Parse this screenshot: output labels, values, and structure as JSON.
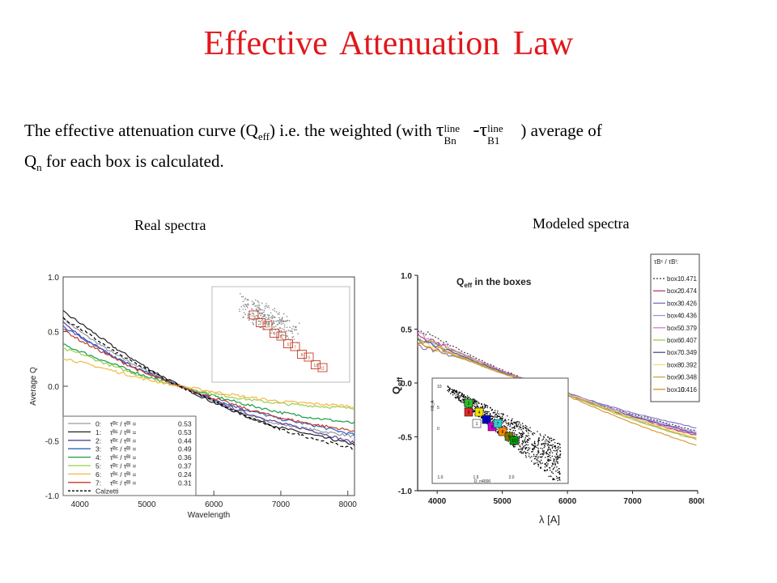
{
  "slide": {
    "title": "Effective Attenuation Law",
    "text_pre": "The effective attenuation curve (Q",
    "text_sub1": "eff",
    "text_mid": ") i.e. the weighted (with ",
    "tau_sup1": "line",
    "tau_sub1": "Bn",
    "tau_sup2": "line",
    "tau_sub2": "B1",
    "text_post": " ) average of",
    "text_line2_pre": "Q",
    "text_sub2": "n",
    "text_line2_post": " for each box is calculated.",
    "caption_left": "Real spectra",
    "caption_right": "Modeled spectra"
  },
  "chart_data": [
    {
      "type": "line",
      "title": "",
      "xlabel": "Wavelength",
      "ylabel": "Average Q",
      "xlim": [
        3750,
        8100
      ],
      "ylim": [
        -1.0,
        1.0
      ],
      "xticks": [
        4000,
        5000,
        6000,
        7000,
        8000
      ],
      "yticks": [
        -1.0,
        -0.5,
        0.0,
        0.5,
        1.0
      ],
      "ytick_labels": [
        "-1.0",
        "-0.5",
        "0.0",
        "0.5",
        "1.0"
      ],
      "legend_position": "lower-left",
      "x": [
        3750,
        4000,
        4500,
        5000,
        5500,
        6000,
        6500,
        7000,
        7500,
        8000
      ],
      "series": [
        {
          "name": "0:  τBc / τBl = 0.53",
          "color": "#9a9a9a",
          "values": [
            0.62,
            0.5,
            0.3,
            0.14,
            0.0,
            -0.14,
            -0.26,
            -0.35,
            -0.4,
            -0.45
          ]
        },
        {
          "name": "1:  τBc / τBl = 0.53",
          "color": "#202020",
          "values": [
            0.68,
            0.58,
            0.36,
            0.17,
            0.0,
            -0.15,
            -0.28,
            -0.38,
            -0.45,
            -0.52
          ]
        },
        {
          "name": "2:  τBc / τBl = 0.44",
          "color": "#5a3f9e",
          "values": [
            0.58,
            0.46,
            0.27,
            0.12,
            0.0,
            -0.13,
            -0.25,
            -0.34,
            -0.41,
            -0.5
          ]
        },
        {
          "name": "3:  τBc / τBl = 0.49",
          "color": "#2a62c8",
          "values": [
            0.55,
            0.45,
            0.27,
            0.12,
            0.0,
            -0.12,
            -0.22,
            -0.3,
            -0.36,
            -0.43
          ]
        },
        {
          "name": "4:  τBc / τBl = 0.36",
          "color": "#1a9a4a",
          "values": [
            0.38,
            0.32,
            0.2,
            0.09,
            0.0,
            -0.09,
            -0.17,
            -0.24,
            -0.29,
            -0.33
          ]
        },
        {
          "name": "5:  τBc / τBl = 0.37",
          "color": "#9ccd4c",
          "values": [
            0.34,
            0.3,
            0.18,
            0.08,
            0.0,
            -0.07,
            -0.12,
            -0.16,
            -0.18,
            -0.2
          ]
        },
        {
          "name": "6:  τBc / τBl = 0.24",
          "color": "#f2b845",
          "values": [
            0.26,
            0.22,
            0.14,
            0.06,
            0.0,
            -0.05,
            -0.1,
            -0.14,
            -0.16,
            -0.18
          ]
        },
        {
          "name": "7:  τBc / τBl = 0.31",
          "color": "#c83a2a",
          "values": [
            0.52,
            0.42,
            0.26,
            0.11,
            0.0,
            -0.11,
            -0.21,
            -0.29,
            -0.35,
            -0.4
          ]
        },
        {
          "name": "Calzetti",
          "color": "#000000",
          "dashed": true,
          "values": [
            0.62,
            0.53,
            0.32,
            0.15,
            0.0,
            -0.14,
            -0.28,
            -0.4,
            -0.48,
            -0.56
          ]
        }
      ],
      "legend": [
        {
          "num": "0:",
          "ratio": "0.53",
          "color": "#9a9a9a"
        },
        {
          "num": "1:",
          "ratio": "0.53",
          "color": "#202020"
        },
        {
          "num": "2:",
          "ratio": "0.44",
          "color": "#5a3f9e"
        },
        {
          "num": "3:",
          "ratio": "0.49",
          "color": "#2a62c8"
        },
        {
          "num": "4:",
          "ratio": "0.36",
          "color": "#1a9a4a"
        },
        {
          "num": "5:",
          "ratio": "0.37",
          "color": "#9ccd4c"
        },
        {
          "num": "6:",
          "ratio": "0.24",
          "color": "#f2b845"
        },
        {
          "num": "7:",
          "ratio": "0.31",
          "color": "#c83a2a"
        },
        {
          "num": "",
          "label": "Calzetti",
          "ratio": "",
          "color": "#000000",
          "dashed": true
        }
      ],
      "inset": {
        "type": "scatter",
        "boxes": [
          "1",
          "2",
          "3",
          "4",
          "5",
          "6",
          "7",
          "8",
          "9",
          "10",
          "11"
        ]
      }
    },
    {
      "type": "line",
      "title": "Q_eff in the boxes",
      "title_main": "Q",
      "title_sub": "eff",
      "title_rest": " in the boxes",
      "xlabel": "λ [A]",
      "ylabel_main": "Q",
      "ylabel_sub": "eff",
      "xlim": [
        3700,
        8000
      ],
      "ylim": [
        -1.0,
        1.0
      ],
      "xticks": [
        4000,
        5000,
        6000,
        7000,
        8000
      ],
      "yticks": [
        -1.0,
        -0.5,
        0.0,
        0.5,
        1.0
      ],
      "ytick_labels": [
        "-1.0",
        "-0.5",
        "0.0",
        "0.5",
        "1.0"
      ],
      "legend_position": "right",
      "legend_header": "τBᶜ / τBˡ:",
      "x": [
        3700,
        4000,
        4500,
        5000,
        5500,
        6000,
        6500,
        7000,
        7500,
        8000
      ],
      "series": [
        {
          "name": "box1:",
          "ratio": "0.471",
          "color": "#333333",
          "dashed": true,
          "values": [
            0.5,
            0.42,
            0.26,
            0.12,
            0.0,
            -0.1,
            -0.2,
            -0.29,
            -0.37,
            -0.45
          ]
        },
        {
          "name": "box2:",
          "ratio": "0.474",
          "color": "#b23a6a",
          "values": [
            0.44,
            0.37,
            0.24,
            0.11,
            0.0,
            -0.11,
            -0.22,
            -0.32,
            -0.41,
            -0.49
          ]
        },
        {
          "name": "box3:",
          "ratio": "0.426",
          "color": "#7b6bc2",
          "values": [
            0.34,
            0.3,
            0.2,
            0.09,
            0.0,
            -0.09,
            -0.19,
            -0.28,
            -0.35,
            -0.42
          ]
        },
        {
          "name": "box4:",
          "ratio": "0.436",
          "color": "#a98ee0",
          "values": [
            0.4,
            0.34,
            0.22,
            0.1,
            0.0,
            -0.1,
            -0.2,
            -0.3,
            -0.38,
            -0.46
          ]
        },
        {
          "name": "box5:",
          "ratio": "0.379",
          "color": "#d97ad4",
          "values": [
            0.46,
            0.38,
            0.24,
            0.11,
            0.0,
            -0.1,
            -0.21,
            -0.31,
            -0.4,
            -0.48
          ]
        },
        {
          "name": "box6:",
          "ratio": "0.407",
          "color": "#9ccd4c",
          "values": [
            0.42,
            0.36,
            0.23,
            0.1,
            0.0,
            -0.11,
            -0.23,
            -0.34,
            -0.44,
            -0.53
          ]
        },
        {
          "name": "box7:",
          "ratio": "0.349",
          "color": "#4f4a9a",
          "values": [
            0.4,
            0.35,
            0.22,
            0.1,
            0.0,
            -0.1,
            -0.21,
            -0.31,
            -0.39,
            -0.47
          ]
        },
        {
          "name": "box8:",
          "ratio": "0.392",
          "color": "#f4e07a",
          "values": [
            0.38,
            0.33,
            0.21,
            0.09,
            0.0,
            -0.1,
            -0.21,
            -0.32,
            -0.42,
            -0.51
          ]
        },
        {
          "name": "box9:",
          "ratio": "0.348",
          "color": "#c8a848",
          "values": [
            0.36,
            0.31,
            0.2,
            0.09,
            0.0,
            -0.11,
            -0.22,
            -0.33,
            -0.43,
            -0.52
          ]
        },
        {
          "name": "box10:",
          "ratio": "0.416",
          "color": "#d9902a",
          "values": [
            0.37,
            0.32,
            0.21,
            0.09,
            0.0,
            -0.12,
            -0.25,
            -0.37,
            -0.48,
            -0.58
          ]
        }
      ],
      "inset": {
        "type": "scatter",
        "xlabel": "D_n4000",
        "ylabel": "Hδ_A",
        "xticks": [
          "1.0",
          "1.5",
          "2.0"
        ],
        "yticks": [
          "10",
          "5",
          "0"
        ],
        "boxes": [
          "2",
          "3",
          "4",
          "5",
          "6",
          "7",
          "8",
          "9",
          "10",
          "1"
        ],
        "box_colors": [
          "#2fbf2f",
          "#e02a2a",
          "#f2e200",
          "#0000d0",
          "#d000d0",
          "#30d0d0",
          "#ff8800",
          "#7a7a00",
          "#00a000",
          "#ffffff"
        ]
      }
    }
  ]
}
